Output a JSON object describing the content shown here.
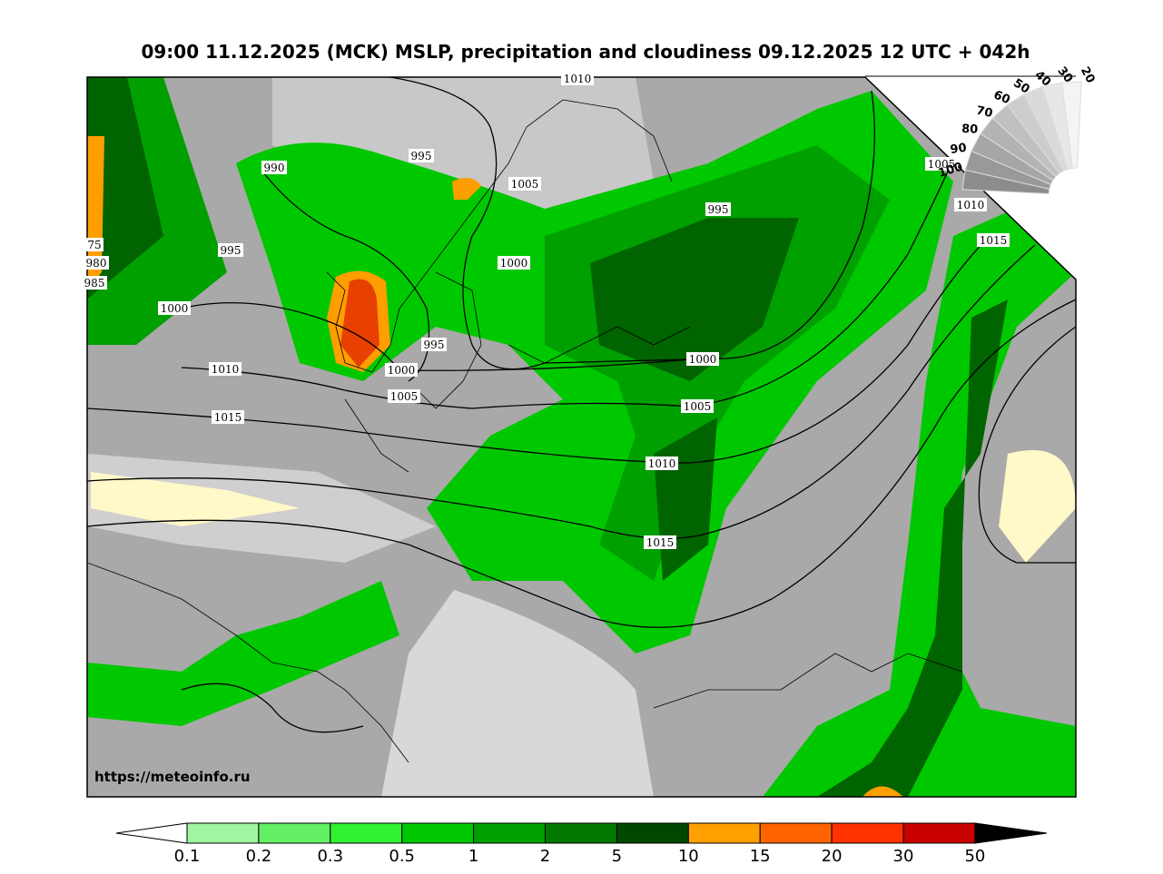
{
  "header": {
    "title": "09:00 11.12.2025 (MCK) MSLP, precipitation and cloudiness 09.12.2025 12 UTC + 042h"
  },
  "map": {
    "url": "https://meteoinfo.ru",
    "isobar_labels": [
      "1010",
      "995",
      "990",
      "1005",
      "1005",
      "995",
      "1010",
      "1015",
      "1000",
      "995",
      "1000",
      "995",
      "1000",
      "1000",
      "1005",
      "1005",
      "1010",
      "1015",
      "1010",
      "1015",
      "75",
      "980",
      "985"
    ]
  },
  "precip_legend": {
    "labels": [
      "0.1",
      "0.2",
      "0.3",
      "0.5",
      "1",
      "2",
      "5",
      "10",
      "15",
      "20",
      "30",
      "50"
    ]
  },
  "cloud_legend": {
    "labels": [
      "100",
      "90",
      "80",
      "70",
      "60",
      "50",
      "40",
      "30",
      "20"
    ]
  }
}
